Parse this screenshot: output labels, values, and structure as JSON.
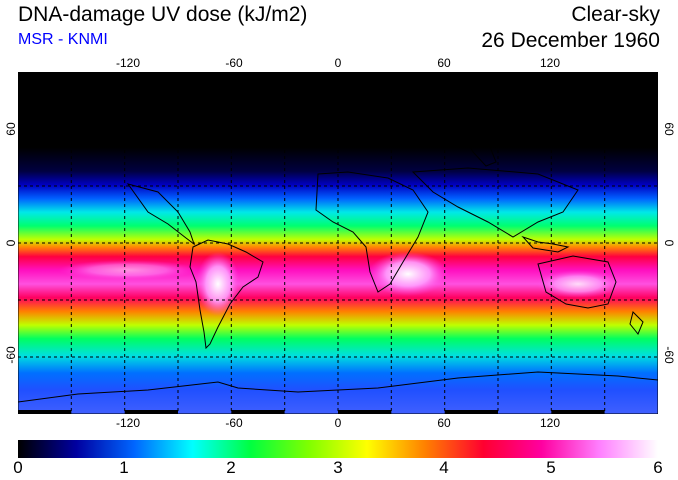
{
  "header": {
    "title": "DNA-damage UV dose (kJ/m2)",
    "subtitle": "MSR - KNMI",
    "sky_condition": "Clear-sky",
    "date": "26 December 1960"
  },
  "map": {
    "lon_ticks": [
      "-120",
      "-60",
      "0",
      "60",
      "120"
    ],
    "lat_ticks": [
      "60",
      "0",
      "-60"
    ],
    "lon_range": [
      -180,
      180
    ],
    "lat_range": [
      -90,
      90
    ],
    "grid_step_deg": 30
  },
  "colorbar": {
    "labels": [
      "0",
      "1",
      "2",
      "3",
      "4",
      "5",
      "6"
    ],
    "min": 0,
    "max": 6,
    "colors": [
      "#000000",
      "#0000a0",
      "#0066ff",
      "#00ffff",
      "#00ff40",
      "#80ff00",
      "#ffff00",
      "#ff8000",
      "#ff0030",
      "#ff00a0",
      "#ff80ff",
      "#ffffff"
    ]
  }
}
